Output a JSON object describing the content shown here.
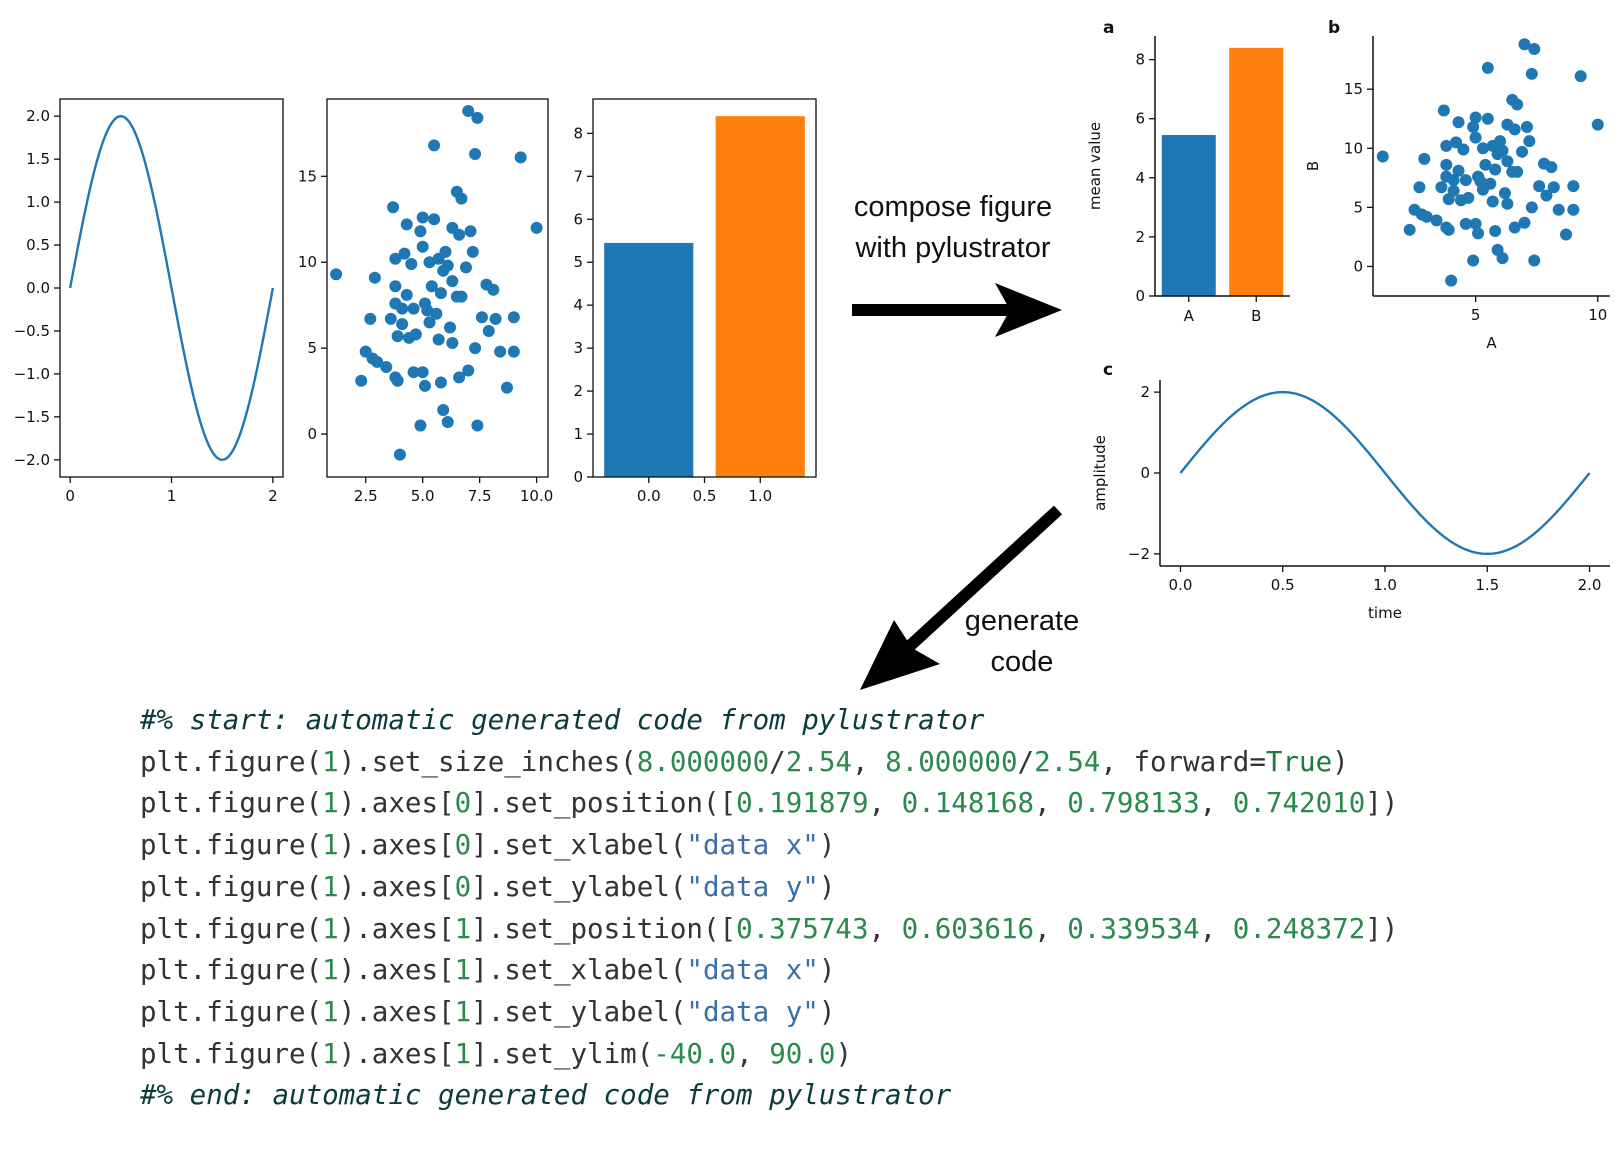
{
  "colors": {
    "blue": "#1f77b4",
    "orange": "#ff7f0e",
    "arrow": "#000000"
  },
  "labels": {
    "compose_line1": "compose figure",
    "compose_line2": "with pylustrator",
    "generate_line1": "generate",
    "generate_line2": "code",
    "panel_a": "a",
    "panel_b": "b",
    "panel_c": "c"
  },
  "chart_data": [
    {
      "id": "left-sine",
      "type": "line",
      "series": [
        {
          "name": "sin",
          "function": "2*sin(pi*x)",
          "x_range": [
            0,
            2
          ]
        }
      ],
      "xlim": [
        -0.1,
        2.1
      ],
      "ylim": [
        -2.2,
        2.2
      ],
      "xticks": [
        0,
        1,
        2
      ],
      "xtick_labels": [
        "0",
        "1",
        "2"
      ],
      "yticks": [
        -2,
        -1.5,
        -1,
        -0.5,
        0,
        0.5,
        1,
        1.5,
        2
      ],
      "ytick_labels": [
        "−2.0",
        "−1.5",
        "−1.0",
        "−0.5",
        "0.0",
        "0.5",
        "1.0",
        "1.5",
        "2.0"
      ],
      "xlabel": "",
      "ylabel": ""
    },
    {
      "id": "left-scatter",
      "type": "scatter",
      "x": [
        7.0,
        7.4,
        5.5,
        7.3,
        9.3,
        6.5,
        6.7,
        3.7,
        5.0,
        4.3,
        5.5,
        4.9,
        6.3,
        6.6,
        7.1,
        4.2,
        5.0,
        6.0,
        5.7,
        7.2,
        3.8,
        4.5,
        5.3,
        5.9,
        6.1,
        6.9,
        1.2,
        2.9,
        3.8,
        6.3,
        7.8,
        8.1,
        5.4,
        4.3,
        5.8,
        6.5,
        6.7,
        5.1,
        4.1,
        3.8,
        4.6,
        5.2,
        5.6,
        7.6,
        8.2,
        9.0,
        2.7,
        3.6,
        4.1,
        5.3,
        6.2,
        7.9,
        4.4,
        3.9,
        4.7,
        5.7,
        6.3,
        7.3,
        2.5,
        2.8,
        3.0,
        3.4,
        5.0,
        7.0,
        9.0,
        4.6,
        3.8,
        3.9,
        5.1,
        6.6,
        5.8,
        2.3,
        8.7,
        5.9,
        4.9,
        6.1,
        7.4,
        8.4,
        10.0,
        4.0
      ],
      "y": [
        18.8,
        18.4,
        16.8,
        16.3,
        16.1,
        14.1,
        13.7,
        13.2,
        12.6,
        12.2,
        12.5,
        11.8,
        12.0,
        11.6,
        11.8,
        10.5,
        10.9,
        10.6,
        10.2,
        10.6,
        10.2,
        9.9,
        10.0,
        9.5,
        9.8,
        9.7,
        9.3,
        9.1,
        8.6,
        8.9,
        8.7,
        8.4,
        8.6,
        8.1,
        8.2,
        8.0,
        8.0,
        7.6,
        7.3,
        7.6,
        7.3,
        7.2,
        7.0,
        6.8,
        6.7,
        6.8,
        6.7,
        6.7,
        6.4,
        6.5,
        6.2,
        6.0,
        5.6,
        5.7,
        5.8,
        5.5,
        5.3,
        5.0,
        4.8,
        4.4,
        4.2,
        3.9,
        3.6,
        3.7,
        4.8,
        3.6,
        3.3,
        3.1,
        2.8,
        3.3,
        3.0,
        3.1,
        2.7,
        1.4,
        0.5,
        0.7,
        0.5,
        4.8,
        12.0,
        -1.2
      ],
      "xlim": [
        0.8,
        10.5
      ],
      "ylim": [
        -2.5,
        19.5
      ],
      "xticks": [
        2.5,
        5,
        7.5,
        10
      ],
      "xtick_labels": [
        "2.5",
        "5.0",
        "7.5",
        "10.0"
      ],
      "yticks": [
        0,
        5,
        10,
        15
      ],
      "ytick_labels": [
        "0",
        "5",
        "10",
        "15"
      ],
      "xlabel": "",
      "ylabel": ""
    },
    {
      "id": "left-bar",
      "type": "bar",
      "x": [
        0,
        1
      ],
      "values": [
        5.45,
        8.4
      ],
      "bar_width": 0.8,
      "xlim": [
        -0.5,
        1.5
      ],
      "ylim": [
        0,
        8.8
      ],
      "xticks": [
        0,
        0.5,
        1
      ],
      "xtick_labels": [
        "0.0",
        "0.5",
        "1.0"
      ],
      "yticks": [
        0,
        1,
        2,
        3,
        4,
        5,
        6,
        7,
        8
      ],
      "ytick_labels": [
        "0",
        "1",
        "2",
        "3",
        "4",
        "5",
        "6",
        "7",
        "8"
      ],
      "xlabel": "",
      "ylabel": ""
    },
    {
      "id": "panel-a-bar",
      "type": "bar",
      "categories": [
        "A",
        "B"
      ],
      "values": [
        5.45,
        8.4
      ],
      "xlim": [
        -0.5,
        1.5
      ],
      "ylim": [
        0,
        8.8
      ],
      "yticks": [
        0,
        2,
        4,
        6,
        8
      ],
      "ytick_labels": [
        "0",
        "2",
        "4",
        "6",
        "8"
      ],
      "xlabel": "",
      "ylabel": "mean value"
    },
    {
      "id": "panel-b-scatter",
      "type": "scatter",
      "x": [
        7.0,
        7.4,
        5.5,
        7.3,
        9.3,
        6.5,
        6.7,
        3.7,
        5.0,
        4.3,
        5.5,
        4.9,
        6.3,
        6.6,
        7.1,
        4.2,
        5.0,
        6.0,
        5.7,
        7.2,
        3.8,
        4.5,
        5.3,
        5.9,
        6.1,
        6.9,
        1.2,
        2.9,
        3.8,
        6.3,
        7.8,
        8.1,
        5.4,
        4.3,
        5.8,
        6.5,
        6.7,
        5.1,
        4.1,
        3.8,
        4.6,
        5.2,
        5.6,
        7.6,
        8.2,
        9.0,
        2.7,
        3.6,
        4.1,
        5.3,
        6.2,
        7.9,
        4.4,
        3.9,
        4.7,
        5.7,
        6.3,
        7.3,
        2.5,
        2.8,
        3.0,
        3.4,
        5.0,
        7.0,
        9.0,
        4.6,
        3.8,
        3.9,
        5.1,
        6.6,
        5.8,
        2.3,
        8.7,
        5.9,
        4.9,
        6.1,
        7.4,
        8.4,
        10.0,
        4.0
      ],
      "y": [
        18.8,
        18.4,
        16.8,
        16.3,
        16.1,
        14.1,
        13.7,
        13.2,
        12.6,
        12.2,
        12.5,
        11.8,
        12.0,
        11.6,
        11.8,
        10.5,
        10.9,
        10.6,
        10.2,
        10.6,
        10.2,
        9.9,
        10.0,
        9.5,
        9.8,
        9.7,
        9.3,
        9.1,
        8.6,
        8.9,
        8.7,
        8.4,
        8.6,
        8.1,
        8.2,
        8.0,
        8.0,
        7.6,
        7.3,
        7.6,
        7.3,
        7.2,
        7.0,
        6.8,
        6.7,
        6.8,
        6.7,
        6.7,
        6.4,
        6.5,
        6.2,
        6.0,
        5.6,
        5.7,
        5.8,
        5.5,
        5.3,
        5.0,
        4.8,
        4.4,
        4.2,
        3.9,
        3.6,
        3.7,
        4.8,
        3.6,
        3.3,
        3.1,
        2.8,
        3.3,
        3.0,
        3.1,
        2.7,
        1.4,
        0.5,
        0.7,
        0.5,
        4.8,
        12.0,
        -1.2
      ],
      "xlim": [
        0.8,
        10.5
      ],
      "ylim": [
        -2.5,
        19.5
      ],
      "xticks": [
        5,
        10
      ],
      "xtick_labels": [
        "5",
        "10"
      ],
      "yticks": [
        0,
        5,
        10,
        15
      ],
      "ytick_labels": [
        "0",
        "5",
        "10",
        "15"
      ],
      "xlabel": "A",
      "ylabel": "B"
    },
    {
      "id": "panel-c-line",
      "type": "line",
      "series": [
        {
          "name": "sin",
          "function": "2*sin(pi*x)",
          "x_range": [
            0,
            2
          ]
        }
      ],
      "xlim": [
        -0.1,
        2.1
      ],
      "ylim": [
        -2.3,
        2.3
      ],
      "xticks": [
        0,
        0.5,
        1,
        1.5,
        2
      ],
      "xtick_labels": [
        "0.0",
        "0.5",
        "1.0",
        "1.5",
        "2.0"
      ],
      "yticks": [
        -2,
        0,
        2
      ],
      "ytick_labels": [
        "−2",
        "0",
        "2"
      ],
      "xlabel": "time",
      "ylabel": "amplitude"
    }
  ],
  "code": {
    "start_comment": "#% start: automatic generated code from pylustrator",
    "end_comment": "#% end: automatic generated code from pylustrator",
    "lines": [
      [
        {
          "t": "plt.figure(",
          "c": "blk"
        },
        {
          "t": "1",
          "c": "num"
        },
        {
          "t": ").set_size_inches(",
          "c": "blk"
        },
        {
          "t": "8.000000",
          "c": "num"
        },
        {
          "t": "/",
          "c": "blk"
        },
        {
          "t": "2.54",
          "c": "num"
        },
        {
          "t": ", ",
          "c": "blk"
        },
        {
          "t": "8.000000",
          "c": "num"
        },
        {
          "t": "/",
          "c": "blk"
        },
        {
          "t": "2.54",
          "c": "num"
        },
        {
          "t": ", forward=",
          "c": "blk"
        },
        {
          "t": "True",
          "c": "kw"
        },
        {
          "t": ")",
          "c": "blk"
        }
      ],
      [
        {
          "t": "plt.figure(",
          "c": "blk"
        },
        {
          "t": "1",
          "c": "num"
        },
        {
          "t": ").axes[",
          "c": "blk"
        },
        {
          "t": "0",
          "c": "num"
        },
        {
          "t": "].set_position([",
          "c": "blk"
        },
        {
          "t": "0.191879",
          "c": "num"
        },
        {
          "t": ", ",
          "c": "blk"
        },
        {
          "t": "0.148168",
          "c": "num"
        },
        {
          "t": ", ",
          "c": "blk"
        },
        {
          "t": "0.798133",
          "c": "num"
        },
        {
          "t": ", ",
          "c": "blk"
        },
        {
          "t": "0.742010",
          "c": "num"
        },
        {
          "t": "])",
          "c": "blk"
        }
      ],
      [
        {
          "t": "plt.figure(",
          "c": "blk"
        },
        {
          "t": "1",
          "c": "num"
        },
        {
          "t": ").axes[",
          "c": "blk"
        },
        {
          "t": "0",
          "c": "num"
        },
        {
          "t": "].set_xlabel(",
          "c": "blk"
        },
        {
          "t": "\"data x\"",
          "c": "str"
        },
        {
          "t": ")",
          "c": "blk"
        }
      ],
      [
        {
          "t": "plt.figure(",
          "c": "blk"
        },
        {
          "t": "1",
          "c": "num"
        },
        {
          "t": ").axes[",
          "c": "blk"
        },
        {
          "t": "0",
          "c": "num"
        },
        {
          "t": "].set_ylabel(",
          "c": "blk"
        },
        {
          "t": "\"data y\"",
          "c": "str"
        },
        {
          "t": ")",
          "c": "blk"
        }
      ],
      [
        {
          "t": "plt.figure(",
          "c": "blk"
        },
        {
          "t": "1",
          "c": "num"
        },
        {
          "t": ").axes[",
          "c": "blk"
        },
        {
          "t": "1",
          "c": "num"
        },
        {
          "t": "].set_position([",
          "c": "blk"
        },
        {
          "t": "0.375743",
          "c": "num"
        },
        {
          "t": ", ",
          "c": "blk"
        },
        {
          "t": "0.603616",
          "c": "num"
        },
        {
          "t": ", ",
          "c": "blk"
        },
        {
          "t": "0.339534",
          "c": "num"
        },
        {
          "t": ", ",
          "c": "blk"
        },
        {
          "t": "0.248372",
          "c": "num"
        },
        {
          "t": "])",
          "c": "blk"
        }
      ],
      [
        {
          "t": "plt.figure(",
          "c": "blk"
        },
        {
          "t": "1",
          "c": "num"
        },
        {
          "t": ").axes[",
          "c": "blk"
        },
        {
          "t": "1",
          "c": "num"
        },
        {
          "t": "].set_xlabel(",
          "c": "blk"
        },
        {
          "t": "\"data x\"",
          "c": "str"
        },
        {
          "t": ")",
          "c": "blk"
        }
      ],
      [
        {
          "t": "plt.figure(",
          "c": "blk"
        },
        {
          "t": "1",
          "c": "num"
        },
        {
          "t": ").axes[",
          "c": "blk"
        },
        {
          "t": "1",
          "c": "num"
        },
        {
          "t": "].set_ylabel(",
          "c": "blk"
        },
        {
          "t": "\"data y\"",
          "c": "str"
        },
        {
          "t": ")",
          "c": "blk"
        }
      ],
      [
        {
          "t": "plt.figure(",
          "c": "blk"
        },
        {
          "t": "1",
          "c": "num"
        },
        {
          "t": ").axes[",
          "c": "blk"
        },
        {
          "t": "1",
          "c": "num"
        },
        {
          "t": "].set_ylim(",
          "c": "blk"
        },
        {
          "t": "-40.0",
          "c": "num"
        },
        {
          "t": ", ",
          "c": "blk"
        },
        {
          "t": "90.0",
          "c": "num"
        },
        {
          "t": ")",
          "c": "blk"
        }
      ]
    ]
  }
}
